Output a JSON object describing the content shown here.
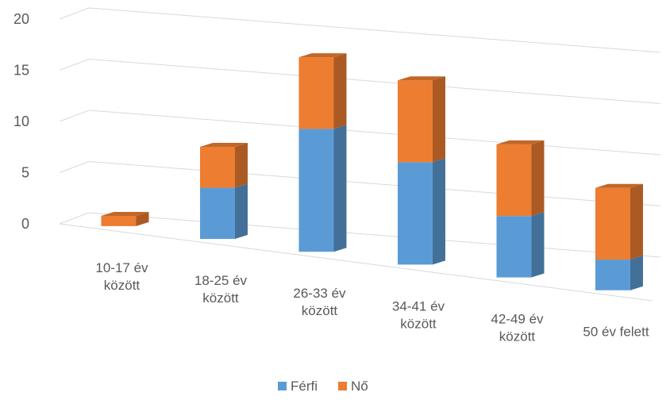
{
  "chart_data": {
    "type": "bar",
    "stacked": true,
    "style": "3d-perspective",
    "title": "",
    "xlabel": "",
    "ylabel": "",
    "ylim": [
      0,
      20
    ],
    "yticks": [
      "0",
      "5",
      "10",
      "15",
      "20"
    ],
    "grid": true,
    "legend_position": "bottom",
    "categories": [
      [
        "10-17 év",
        "között"
      ],
      [
        "18-25 év",
        "között"
      ],
      [
        "26-33 év",
        "között"
      ],
      [
        "34-41 év",
        "között"
      ],
      [
        "42-49 év",
        "között"
      ],
      [
        "50 év felett"
      ]
    ],
    "series": [
      {
        "name": "Férfi",
        "color": "#5B9BD5",
        "values": [
          0,
          5,
          12,
          10,
          6,
          3
        ]
      },
      {
        "name": "Nő",
        "color": "#ED7D31",
        "values": [
          1,
          4,
          7,
          8,
          7,
          7
        ]
      }
    ]
  }
}
